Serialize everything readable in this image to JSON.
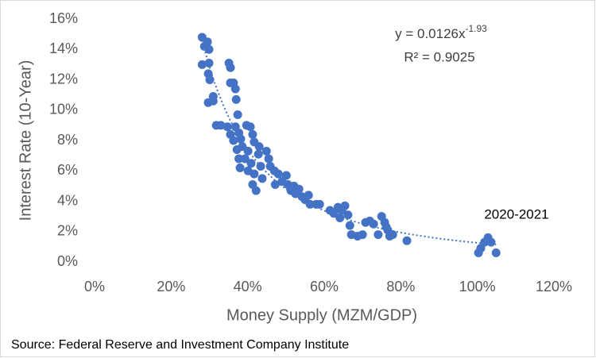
{
  "chart_data": {
    "type": "scatter",
    "x_label": "Money Supply (MZM/GDP)",
    "y_label": "Interest Rate (10-Year)",
    "color": "#4472c4",
    "x": [
      28.1,
      28.7,
      29.5,
      29.9,
      28.1,
      29.9,
      29.7,
      30.1,
      29.7,
      31.0,
      31.0,
      31.8,
      33.0,
      34.7,
      35.1,
      35.5,
      35.5,
      36.3,
      36.8,
      37.0,
      37.4,
      36.8,
      35.5,
      36.3,
      37.7,
      38.2,
      37.2,
      38.6,
      37.7,
      38.0,
      39.3,
      39.7,
      40.7,
      41.3,
      41.7,
      40.1,
      40.9,
      40.1,
      41.7,
      41.3,
      42.2,
      42.8,
      43.4,
      43.8,
      43.0,
      44.9,
      45.5,
      45.9,
      47.0,
      48.0,
      47.2,
      49.0,
      50.1,
      50.5,
      51.3,
      52.1,
      52.5,
      53.4,
      54.2,
      55.0,
      55.9,
      56.3,
      57.9,
      58.8,
      61.5,
      62.5,
      63.6,
      64.6,
      65.4,
      64.1,
      66.2,
      66.7,
      67.1,
      68.7,
      70.0,
      70.8,
      71.9,
      72.9,
      74.1,
      75.0,
      75.8,
      76.6,
      77.1,
      77.9,
      76.2,
      81.6,
      100.3,
      100.9,
      101.9,
      102.8,
      103.6,
      104.9
    ],
    "values": [
      14.8,
      14.2,
      14.5,
      14.0,
      13.0,
      13.1,
      12.4,
      12.0,
      10.5,
      10.6,
      10.9,
      9.0,
      9.0,
      8.9,
      13.1,
      12.8,
      11.8,
      11.8,
      11.4,
      10.7,
      9.7,
      8.9,
      8.4,
      8.0,
      8.5,
      8.1,
      7.4,
      7.6,
      6.8,
      6.2,
      6.8,
      9.0,
      8.9,
      8.4,
      7.9,
      7.3,
      6.5,
      6.0,
      5.8,
      5.1,
      4.7,
      7.1,
      6.3,
      5.5,
      7.6,
      7.3,
      6.8,
      6.3,
      6.0,
      5.8,
      5.1,
      5.3,
      5.7,
      5.1,
      4.7,
      5.0,
      4.5,
      4.8,
      4.3,
      4.1,
      4.4,
      3.8,
      3.8,
      3.8,
      3.4,
      3.2,
      3.6,
      3.4,
      3.7,
      2.9,
      3.1,
      2.4,
      1.8,
      1.7,
      1.8,
      2.6,
      2.7,
      2.5,
      1.8,
      3.0,
      2.6,
      2.1,
      1.7,
      1.8,
      2.3,
      1.4,
      0.6,
      0.9,
      1.3,
      1.6,
      1.3,
      0.6
    ],
    "xlim": [
      0,
      120
    ],
    "xticks": [
      {
        "value": 0,
        "label": "0%"
      },
      {
        "value": 20,
        "label": "20%"
      },
      {
        "value": 40,
        "label": "40%"
      },
      {
        "value": 60,
        "label": "60%"
      },
      {
        "value": 80,
        "label": "80%"
      },
      {
        "value": 100,
        "label": "100%"
      },
      {
        "value": 120,
        "label": "120%"
      }
    ],
    "ylim": [
      0,
      16
    ],
    "yticks": [
      {
        "value": 0,
        "label": "0%"
      },
      {
        "value": 2,
        "label": "2%"
      },
      {
        "value": 4,
        "label": "4%"
      },
      {
        "value": 6,
        "label": "6%"
      },
      {
        "value": 8,
        "label": "8%"
      },
      {
        "value": 10,
        "label": "10%"
      },
      {
        "value": 12,
        "label": "12%"
      },
      {
        "value": 14,
        "label": "14%"
      },
      {
        "value": 16,
        "label": "16%"
      }
    ],
    "trendline": {
      "coefficient": 0.0126,
      "exponent": -1.93
    },
    "equation_text": "y = 0.0126x",
    "equation_exponent": "-1.93",
    "r_squared_text": "R² = 0.9025",
    "annotation": "2020-2021",
    "source": "Source: Federal Reserve and Investment Company Institute"
  }
}
